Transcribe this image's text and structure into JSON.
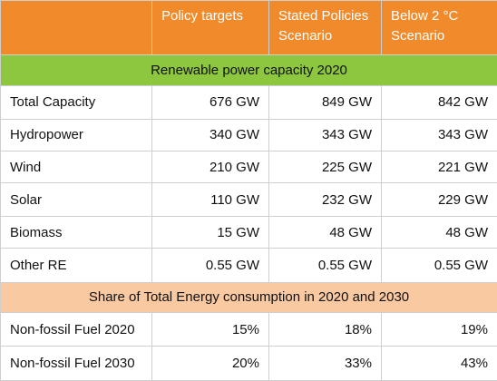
{
  "header": {
    "col0": "",
    "col1": "Policy targets",
    "col2": "Stated Policies Scenario",
    "col3": "Below 2 °C Scenario"
  },
  "section1": {
    "title": "Renewable power capacity 2020"
  },
  "capacity_rows": [
    {
      "label": "Total Capacity",
      "policy": "676 GW",
      "stated": "849 GW",
      "below2": "842 GW"
    },
    {
      "label": "Hydropower",
      "policy": "340 GW",
      "stated": "343 GW",
      "below2": "343 GW"
    },
    {
      "label": "Wind",
      "policy": "210 GW",
      "stated": "225 GW",
      "below2": "221 GW"
    },
    {
      "label": "Solar",
      "policy": "110 GW",
      "stated": "232 GW",
      "below2": "229 GW"
    },
    {
      "label": "Biomass",
      "policy": "15 GW",
      "stated": "48 GW",
      "below2": "48 GW"
    },
    {
      "label": "Other RE",
      "policy": "0.55 GW",
      "stated": "0.55 GW",
      "below2": "0.55 GW"
    }
  ],
  "section2": {
    "title": "Share of Total Energy consumption in 2020 and 2030"
  },
  "share_rows": [
    {
      "label": "Non-fossil Fuel 2020",
      "policy": "15%",
      "stated": "18%",
      "below2": "19%"
    },
    {
      "label": "Non-fossil Fuel 2030",
      "policy": "20%",
      "stated": "33%",
      "below2": "43%"
    }
  ],
  "colors": {
    "header_bg": "#f08a2a",
    "section1_bg": "#8dc63f",
    "section2_bg": "#f9c9a1"
  }
}
